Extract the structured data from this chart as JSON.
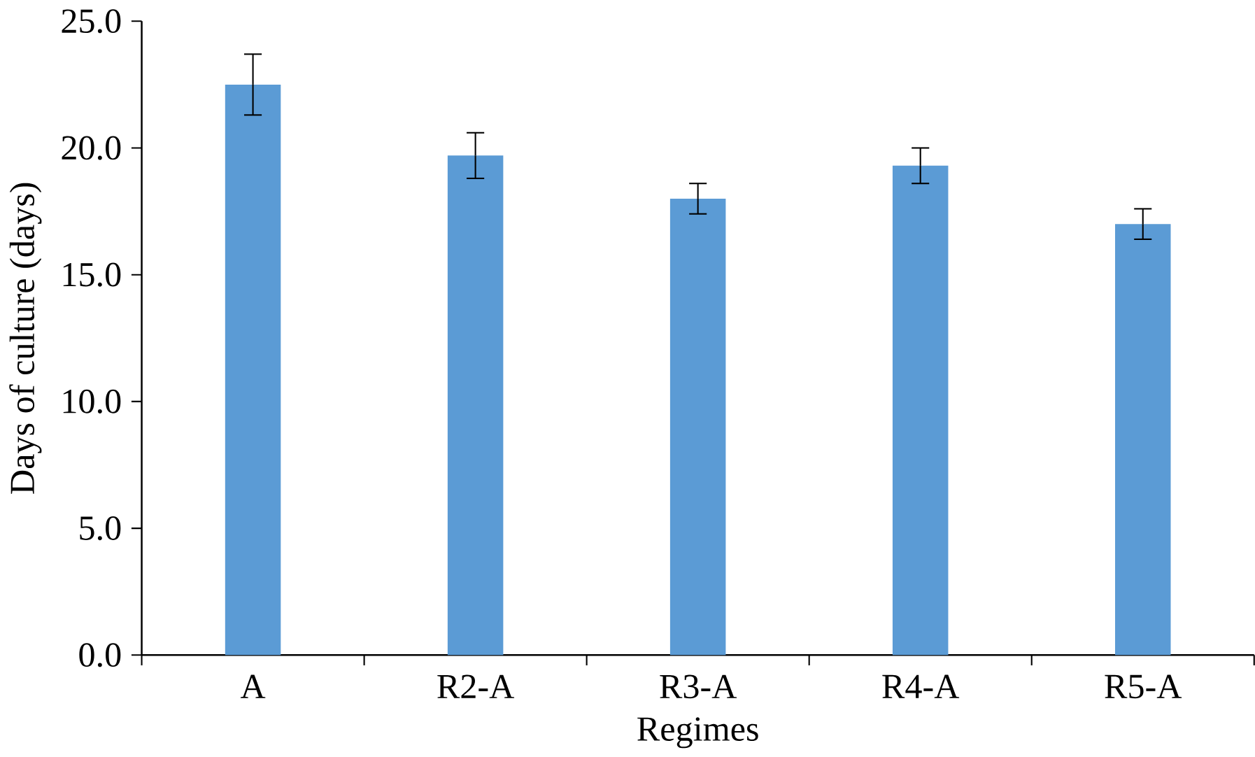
{
  "chart_data": {
    "type": "bar",
    "xlabel": "Regimes",
    "ylabel": "Days of culture (days)",
    "categories": [
      "A",
      "R2-A",
      "R3-A",
      "R4-A",
      "R5-A"
    ],
    "values": [
      22.5,
      19.7,
      18.0,
      19.3,
      17.0
    ],
    "errors": [
      1.2,
      0.9,
      0.6,
      0.7,
      0.6
    ],
    "color": "#5b9bd5",
    "ylim": [
      0,
      25
    ],
    "yticks": [
      {
        "value": 0,
        "label": "0.0"
      },
      {
        "value": 5,
        "label": "5.0"
      },
      {
        "value": 10,
        "label": "10.0"
      },
      {
        "value": 15,
        "label": "15.0"
      },
      {
        "value": 20,
        "label": "20.0"
      },
      {
        "value": 25,
        "label": "25.0"
      }
    ],
    "grid": false
  }
}
